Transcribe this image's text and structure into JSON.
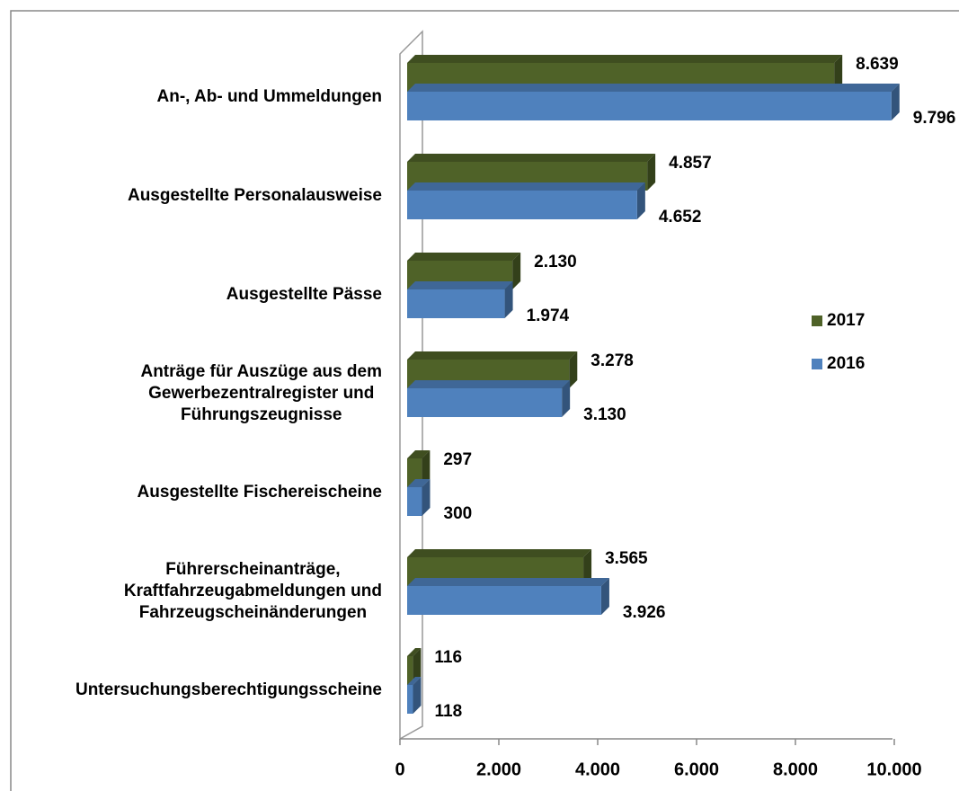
{
  "chart_data": {
    "type": "bar",
    "orientation": "horizontal",
    "categories": [
      "An-, Ab- und Ummeldungen",
      "Ausgestellte Personalausweise",
      "Ausgestellte Pässe",
      "Anträge für Auszüge aus dem\nGewerbezentralregister und\nFührungszeugnisse",
      "Ausgestellte Fischereischeine",
      "Führerscheinanträge,\nKraftfahrzeugabmeldungen und\nFahrzeugscheinänderungen",
      "Untersuchungsberechtigungsscheine"
    ],
    "series": [
      {
        "name": "2017",
        "color": "#4f6228",
        "values": [
          8639,
          4857,
          2130,
          3278,
          297,
          3565,
          116
        ],
        "value_labels": [
          "8.639",
          "4.857",
          "2.130",
          "3.278",
          "297",
          "3.565",
          "116"
        ]
      },
      {
        "name": "2016",
        "color": "#4f81bd",
        "values": [
          9796,
          4652,
          1974,
          3130,
          300,
          3926,
          118
        ],
        "value_labels": [
          "9.796",
          "4.652",
          "1.974",
          "3.130",
          "300",
          "3.926",
          "118"
        ]
      }
    ],
    "xlim": [
      0,
      10000
    ],
    "xticks": [
      0,
      {
        "value": 2000,
        "label": "2.000"
      },
      {
        "value": 4000,
        "label": "4.000"
      },
      {
        "value": 6000,
        "label": "6.000"
      },
      {
        "value": 8000,
        "label": "8.000"
      },
      {
        "value": 10000,
        "label": "10.000"
      }
    ],
    "legend": "right"
  }
}
